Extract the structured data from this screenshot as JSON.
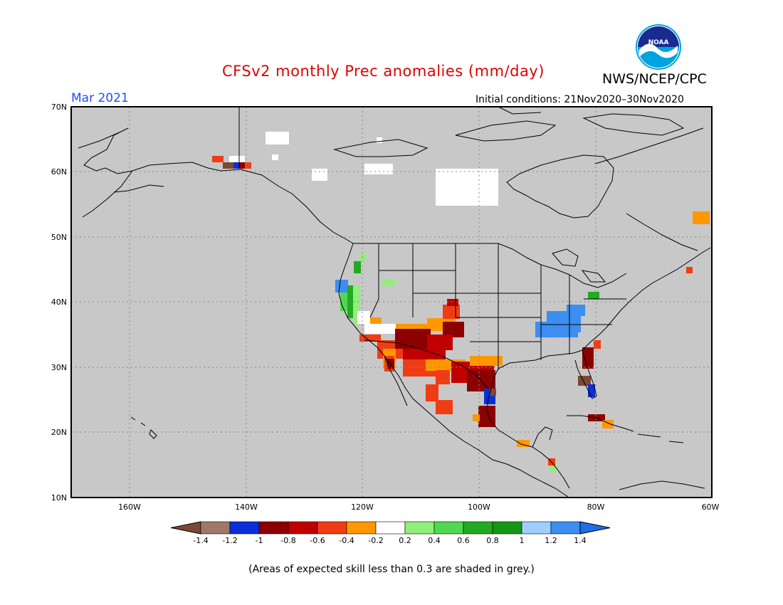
{
  "title": "CFSv2 monthly Prec anomalies (mm/day)",
  "agency": "NWS/NCEP/CPC",
  "logo_text": "NOAA",
  "target_month": "Mar 2021",
  "initial_conditions": "Initial conditions: 21Nov2020–30Nov2020",
  "footnote": "(Areas of expected skill less than 0.3 are shaded in grey.)",
  "map": {
    "lat_labels": [
      "70N",
      "60N",
      "50N",
      "40N",
      "30N",
      "20N",
      "10N"
    ],
    "lon_labels": [
      "160W",
      "140W",
      "120W",
      "100W",
      "80W",
      "60W"
    ],
    "background_color": "#c8c8c8",
    "gridlines": "dotted"
  },
  "colorbar": {
    "tick_labels": [
      "-1.4",
      "-1.2",
      "-1",
      "-0.8",
      "-0.6",
      "-0.4",
      "-0.2",
      "0.2",
      "0.4",
      "0.6",
      "0.8",
      "1",
      "1.2",
      "1.4"
    ],
    "colors": [
      "#7a4a35",
      "#a0786a",
      "#0a2fd6",
      "#8c0000",
      "#c00000",
      "#f03c14",
      "#ff9800",
      "#ffffff",
      "#90ee7a",
      "#50d850",
      "#22aa22",
      "#149614",
      "#9ccfff",
      "#3c8ef0",
      "#1e6ee6"
    ]
  }
}
